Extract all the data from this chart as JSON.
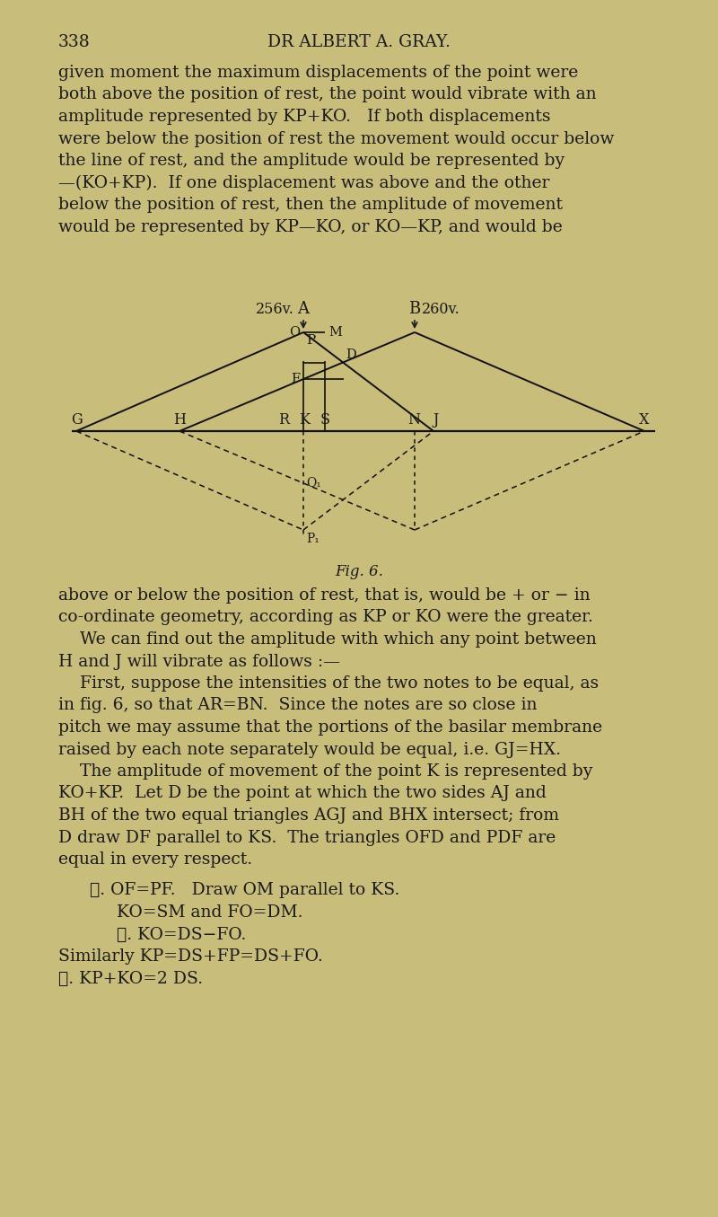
{
  "bg_color": "#c9bd7c",
  "text_color": "#1a1a1a",
  "line_color": "#111111",
  "page_number": "338",
  "header": "DR ALBERT A. GRAY.",
  "p1": [
    "given moment the maximum displacements of the point were",
    "both above the position of rest, the point would vibrate with an",
    "amplitude represented by KP+KO.   If both displacements",
    "were below the position of rest the movement would occur below",
    "the line of rest, and the amplitude would be represented by",
    "—(KO+KP).  If one displacement was above and the other",
    "below the position of rest, then the amplitude of movement",
    "would be represented by KP—KO, or KO—KP, and would be"
  ],
  "p2": [
    "above or below the position of rest, that is, would be + or − in",
    "co-ordinate geometry, according as KP or KO were the greater.",
    "    We can find out the amplitude with which any point between",
    "H and J will vibrate as follows :—",
    "    First, suppose the intensities of the two notes to be equal, as",
    "in fig. 6, so that AR=BN.  Since the notes are so close in",
    "pitch we may assume that the portions of the basilar membrane",
    "raised by each note separately would be equal, i.e. GJ=HX.",
    "    The amplitude of movement of the point K is represented by",
    "KO+KP.  Let D be the point at which the two sides AJ and",
    "BH of the two equal triangles AGJ and BHX intersect; from",
    "D draw DF parallel to KS.  The triangles OFD and PDF are",
    "equal in every respect."
  ],
  "p3": [
    [
      100,
      "\\u2234. OF=PF.   Draw OM parallel to KS."
    ],
    [
      130,
      "KO=SM and FO=DM."
    ],
    [
      130,
      "\\u2234. KO=DS−FO."
    ],
    [
      100,
      "Similarly KP=DS+FP=DS+FO."
    ],
    [
      100,
      "\\u2234. KP+KO=2 DS."
    ]
  ],
  "fig_caption": "Fig. 6.",
  "lh": 24.5,
  "fs_body": 13.5,
  "fs_label": 11.5
}
